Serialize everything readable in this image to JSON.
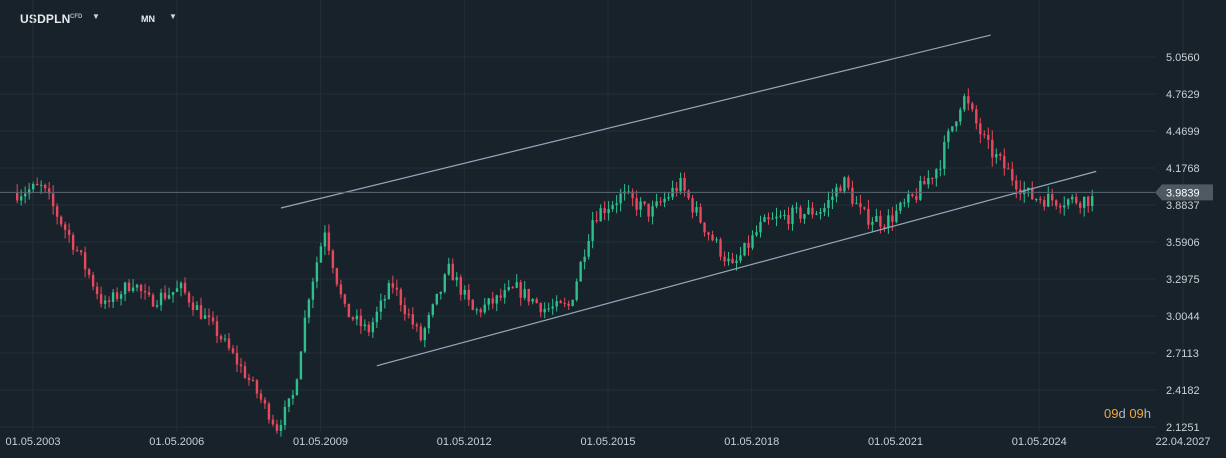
{
  "toolbar": {
    "symbol": "USDPLN",
    "symbol_tag": "CFD",
    "timeframe": "MN"
  },
  "countdown": {
    "days": "09",
    "day_unit": "d",
    "hours": "09",
    "hour_unit": "h"
  },
  "colors": {
    "background": "#18222a",
    "grid": "#222d35",
    "up": "#2fbf8f",
    "down": "#e8485c",
    "trendline": "#93a8bb",
    "price_line": "#5b6770",
    "price_tag": "#4e5a63"
  },
  "chart_data": {
    "type": "candlestick",
    "y_ticks": [
      "5.0560",
      "4.7629",
      "4.4699",
      "4.1768",
      "3.8837",
      "3.5906",
      "3.2975",
      "3.0044",
      "2.7113",
      "2.4182",
      "2.1251"
    ],
    "x_ticks": [
      "01.05.2003",
      "01.05.2006",
      "01.05.2009",
      "01.05.2012",
      "01.05.2015",
      "01.05.2018",
      "01.05.2021",
      "01.05.2024",
      "22.04.2027"
    ],
    "current_price": "3.9839",
    "ylim": [
      2.1251,
      5.056
    ],
    "xlim": [
      2003.33,
      2027.31
    ],
    "trendlines": [
      {
        "name": "channel-upper",
        "x1": 2008.5,
        "y1": 3.86,
        "x2": 2023.3,
        "y2": 5.23
      },
      {
        "name": "channel-lower",
        "x1": 2010.5,
        "y1": 2.61,
        "x2": 2025.5,
        "y2": 4.15
      }
    ],
    "anchors": [
      [
        2003.0,
        3.98
      ],
      [
        2003.6,
        4.02
      ],
      [
        2004.3,
        3.55
      ],
      [
        2004.9,
        3.08
      ],
      [
        2005.5,
        3.28
      ],
      [
        2005.8,
        3.12
      ],
      [
        2006.5,
        3.22
      ],
      [
        2007.3,
        2.85
      ],
      [
        2008.0,
        2.45
      ],
      [
        2008.5,
        2.12
      ],
      [
        2008.85,
        2.38
      ],
      [
        2009.15,
        3.15
      ],
      [
        2009.5,
        3.7
      ],
      [
        2009.9,
        3.05
      ],
      [
        2010.4,
        2.88
      ],
      [
        2010.9,
        3.26
      ],
      [
        2011.5,
        2.82
      ],
      [
        2012.1,
        3.38
      ],
      [
        2012.6,
        3.03
      ],
      [
        2013.5,
        3.22
      ],
      [
        2014.1,
        3.06
      ],
      [
        2014.6,
        3.08
      ],
      [
        2015.1,
        3.8
      ],
      [
        2015.7,
        3.96
      ],
      [
        2016.3,
        3.82
      ],
      [
        2016.9,
        4.05
      ],
      [
        2017.4,
        3.72
      ],
      [
        2018.0,
        3.38
      ],
      [
        2018.6,
        3.72
      ],
      [
        2019.1,
        3.79
      ],
      [
        2019.9,
        3.85
      ],
      [
        2020.3,
        4.08
      ],
      [
        2020.7,
        3.8
      ],
      [
        2021.2,
        3.75
      ],
      [
        2021.8,
        3.95
      ],
      [
        2022.3,
        4.2
      ],
      [
        2022.8,
        4.75
      ],
      [
        2023.3,
        4.35
      ],
      [
        2023.8,
        4.12
      ],
      [
        2024.2,
        3.95
      ],
      [
        2024.6,
        3.93
      ],
      [
        2025.0,
        3.92
      ],
      [
        2025.4,
        3.93
      ]
    ]
  }
}
